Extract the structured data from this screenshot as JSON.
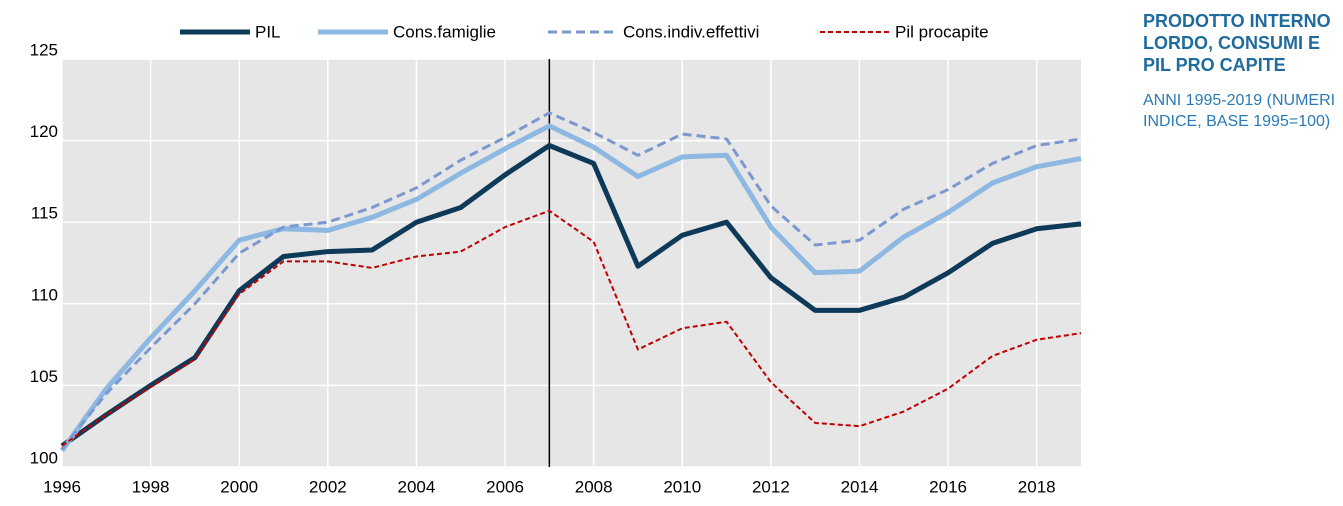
{
  "chart_data": {
    "type": "line",
    "title": "PRODOTTO INTERNO LORDO, CONSUMI E PIL PRO CAPITE",
    "subtitle": "ANNI 1995-2019 (NUMERI INDICE, BASE 1995=100)",
    "x": [
      1996,
      1997,
      1998,
      1999,
      2000,
      2001,
      2002,
      2003,
      2004,
      2005,
      2006,
      2007,
      2008,
      2009,
      2010,
      2011,
      2012,
      2013,
      2014,
      2015,
      2016,
      2017,
      2018,
      2019
    ],
    "series": [
      {
        "name": "PIL",
        "color": "#0e3a5a",
        "dashed": false,
        "values": [
          101.3,
          103.2,
          105.0,
          106.7,
          110.8,
          112.9,
          113.2,
          113.3,
          115.0,
          115.9,
          117.9,
          119.7,
          118.6,
          112.3,
          114.2,
          115.0,
          111.6,
          109.6,
          109.6,
          110.4,
          111.9,
          113.7,
          114.6,
          114.9
        ]
      },
      {
        "name": "Cons.famiglie",
        "color": "#8db8e2",
        "dashed": false,
        "values": [
          101.0,
          104.8,
          107.9,
          110.8,
          113.9,
          114.6,
          114.5,
          115.3,
          116.4,
          118.0,
          119.5,
          120.9,
          119.6,
          117.8,
          119.0,
          119.1,
          114.7,
          111.9,
          112.0,
          114.1,
          115.6,
          117.4,
          118.4,
          118.9
        ]
      },
      {
        "name": "Cons.indiv.effettivi",
        "color": "#7b98cf",
        "dashed": true,
        "values": [
          101.1,
          104.5,
          107.3,
          110.0,
          113.1,
          114.7,
          115.0,
          115.9,
          117.1,
          118.8,
          120.2,
          121.7,
          120.5,
          119.1,
          120.4,
          120.1,
          116.0,
          113.6,
          113.9,
          115.8,
          117.0,
          118.6,
          119.7,
          120.1
        ]
      },
      {
        "name": "Pil procapite",
        "color": "#c00000",
        "dashed": true,
        "values": [
          101.3,
          103.2,
          104.9,
          106.6,
          110.6,
          112.6,
          112.6,
          112.2,
          112.9,
          113.2,
          114.7,
          115.7,
          113.8,
          107.2,
          108.5,
          108.9,
          105.2,
          102.7,
          102.5,
          103.4,
          104.8,
          106.8,
          107.8,
          108.2
        ]
      }
    ],
    "xlim": [
      1996,
      2019
    ],
    "xticks": [
      1996,
      1998,
      2000,
      2002,
      2004,
      2006,
      2008,
      2010,
      2012,
      2014,
      2016,
      2018
    ],
    "ylim": [
      100,
      125
    ],
    "yticks": [
      100,
      105,
      110,
      115,
      120,
      125
    ],
    "vline": 2007,
    "grid": true,
    "legend": "top"
  }
}
